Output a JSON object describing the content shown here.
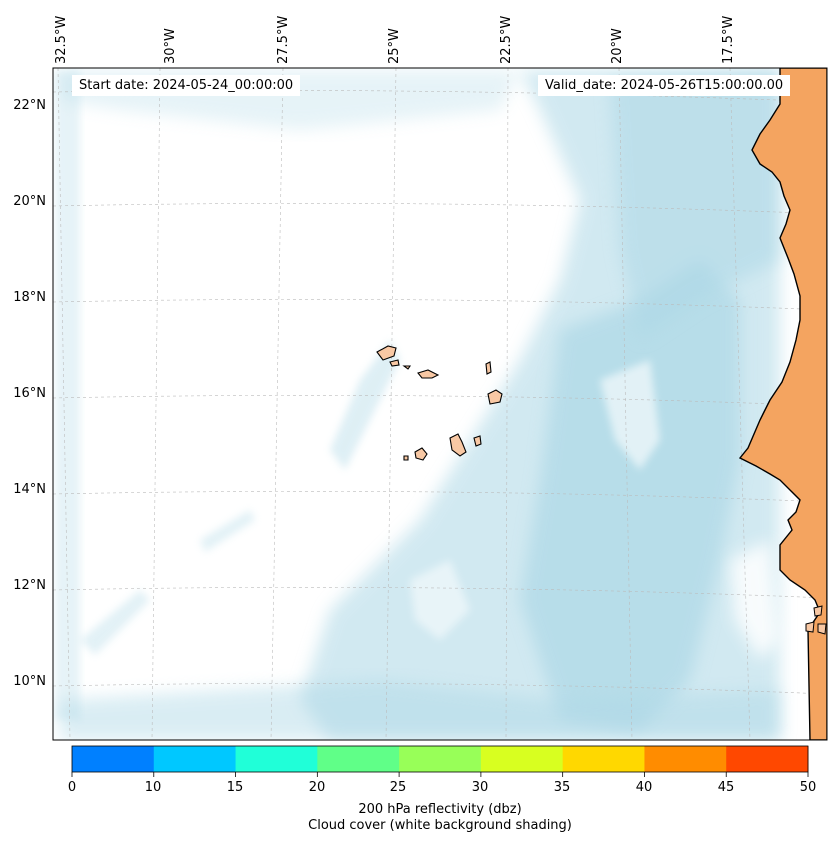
{
  "map": {
    "start_label": "Start date: 2024-05-24_00:00:00",
    "valid_label": "Valid_date: 2024-05-26T15:00:00.00",
    "lon_labels": [
      "32.5°W",
      "30°W",
      "27.5°W",
      "25°W",
      "22.5°W",
      "20°W",
      "17.5°W"
    ],
    "lat_labels": [
      "22°N",
      "20°N",
      "18°N",
      "16°N",
      "14°N",
      "12°N",
      "10°N"
    ],
    "cloud_color": "#add8e6",
    "land_color": "#f4a460",
    "coast_color": "#000000"
  },
  "colorbar": {
    "ticks": [
      "0",
      "10",
      "15",
      "20",
      "25",
      "30",
      "35",
      "40",
      "45",
      "50"
    ],
    "colors": [
      "#0080ff",
      "#00c8ff",
      "#20ffd8",
      "#60ff88",
      "#98ff58",
      "#d8ff20",
      "#ffd800",
      "#ff8c00",
      "#ff4800"
    ],
    "title_line1": "200 hPa reflectivity (dbz)",
    "title_line2": "Cloud cover (white background shading)"
  }
}
